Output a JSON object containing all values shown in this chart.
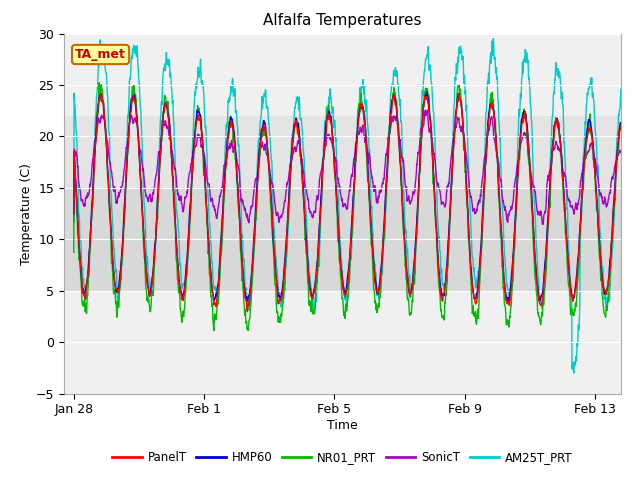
{
  "title": "Alfalfa Temperatures",
  "xlabel": "Time",
  "ylabel": "Temperature (C)",
  "ylim": [
    -5,
    30
  ],
  "yticks": [
    -5,
    0,
    5,
    10,
    15,
    20,
    25,
    30
  ],
  "background_color": "#ffffff",
  "plot_bg_color": "#f0f0f0",
  "series_colors": {
    "PanelT": "#ff0000",
    "HMP60": "#0000dd",
    "NR01_PRT": "#00bb00",
    "SonicT": "#aa00cc",
    "AM25T_PRT": "#00cccc"
  },
  "annotation_text": "TA_met",
  "annotation_color": "#cc0000",
  "annotation_bg": "#ffff99",
  "annotation_border": "#cc6600",
  "xtick_positions": [
    0,
    4,
    8,
    12,
    16
  ],
  "xtick_labels": [
    "Jan 28",
    "Feb 1",
    "Feb 5",
    "Feb 9",
    "Feb 13"
  ],
  "band_ranges": [
    [
      5,
      15
    ],
    [
      15,
      22
    ]
  ],
  "band_colors": [
    "#d8d8d8",
    "#e4e4e4"
  ]
}
